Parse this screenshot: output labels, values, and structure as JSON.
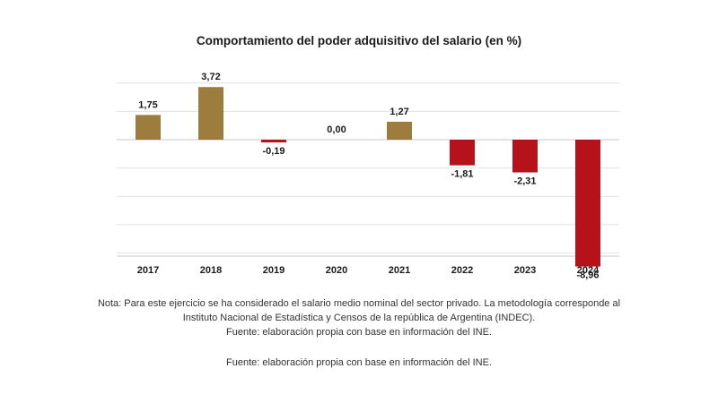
{
  "chart_data": {
    "type": "bar",
    "title": "Comportamiento del poder adquisitivo del salario (en %)",
    "categories": [
      "2017",
      "2018",
      "2019",
      "2020",
      "2021",
      "2022",
      "2023",
      "2024"
    ],
    "values": [
      1.75,
      3.72,
      -0.19,
      0.0,
      1.27,
      -1.81,
      -2.31,
      -8.96
    ],
    "data_labels": [
      "1,75",
      "3,72",
      "-0,19",
      "0,00",
      "1,27",
      "-1,81",
      "-2,31",
      "-8,96"
    ],
    "ylim": [
      -8.2,
      4.0
    ],
    "gridlines": [
      4,
      2,
      0,
      -2,
      -4,
      -6,
      -8
    ],
    "grid": true,
    "legend": "none",
    "colors": {
      "positive": "#9c7d3d",
      "negative": "#b5121b",
      "grid": "#e2e2e2",
      "axis": "#c8c8c8"
    }
  },
  "notes": {
    "note": "Nota: Para este ejercicio se ha considerado el salario medio nominal del sector privado. La metodología corresponde al Instituto Nacional de Estadística y Censos de la república de Argentina (INDEC).",
    "source_1": "Fuente: elaboración propia con base en información del INE.",
    "source_2": "Fuente: elaboración propia con base en información del INE."
  }
}
